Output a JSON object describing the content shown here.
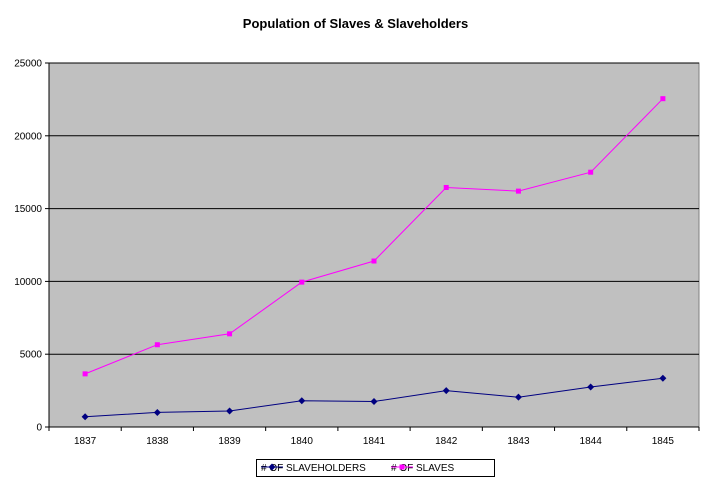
{
  "chart_data": {
    "type": "line",
    "title": "Population of Slaves & Slaveholders",
    "xlabel": "",
    "ylabel": "",
    "categories": [
      "1837",
      "1838",
      "1839",
      "1840",
      "1841",
      "1842",
      "1843",
      "1844",
      "1845"
    ],
    "ylim": [
      0,
      25000
    ],
    "yticks": [
      "0",
      "5000",
      "10000",
      "15000",
      "20000",
      "25000"
    ],
    "grid": true,
    "legend": "bottom",
    "plot_background": "#c0c0c0",
    "series": [
      {
        "name": "# OF SLAVEHOLDERS",
        "color": "#000080",
        "marker": "diamond",
        "values": [
          700,
          1000,
          1100,
          1800,
          1750,
          2500,
          2050,
          2750,
          3350
        ]
      },
      {
        "name": "# OF SLAVES",
        "color": "#ff00ff",
        "marker": "square",
        "values": [
          3650,
          5650,
          6400,
          9950,
          11400,
          16450,
          16200,
          17500,
          22550
        ]
      }
    ]
  }
}
